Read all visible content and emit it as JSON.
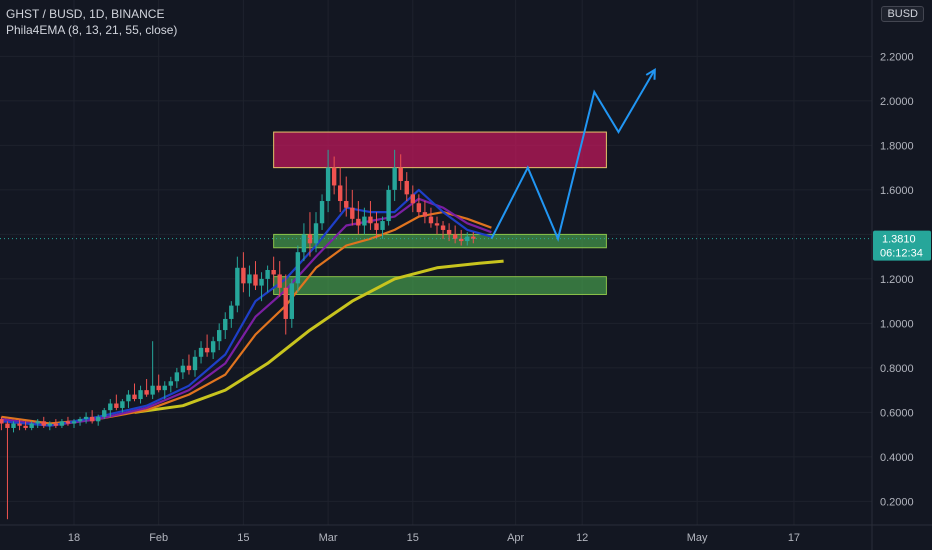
{
  "header": {
    "symbol_line": "GHST / BUSD, 1D, BINANCE",
    "indicator_line": "Phila4EMA (8, 13, 21, 55, close)",
    "currency_button": "BUSD",
    "top_axis_partial": "2"
  },
  "colors": {
    "background": "#131722",
    "grid": "#1e222d",
    "up": "#26a69a",
    "down": "#ef5350",
    "ema8": "#1e3fc8",
    "ema13": "#7b1fa2",
    "ema21": "#e0741f",
    "ema55": "#c8c41e",
    "resistance_zone": "#c2185b",
    "support_zone": "#4caf50",
    "projection": "#2196f3",
    "price_label": "#26a69a"
  },
  "chart_data": {
    "type": "candlestick",
    "ylim": [
      0.1,
      2.4
    ],
    "y_ticks": [
      "2.2000",
      "2.0000",
      "1.8000",
      "1.6000",
      "1.4000",
      "1.2000",
      "1.0000",
      "0.8000",
      "0.6000",
      "0.4000",
      "0.2000"
    ],
    "x_ticks": [
      "18",
      "Feb",
      "15",
      "Mar",
      "15",
      "Apr",
      "12",
      "May",
      "17"
    ],
    "current_price": "1.3810",
    "countdown": "06:12:34",
    "zones": [
      {
        "type": "resistance",
        "low": 1.7,
        "high": 1.86,
        "from": "2022-02-20",
        "to": "2022-04-16"
      },
      {
        "type": "support",
        "low": 1.34,
        "high": 1.4,
        "from": "2022-02-20",
        "to": "2022-04-16"
      },
      {
        "type": "support",
        "low": 1.13,
        "high": 1.21,
        "from": "2022-02-20",
        "to": "2022-04-16"
      }
    ],
    "projection_path": [
      [
        "2022-03-28",
        1.38
      ],
      [
        "2022-04-03",
        1.7
      ],
      [
        "2022-04-08",
        1.38
      ],
      [
        "2022-04-14",
        2.04
      ],
      [
        "2022-04-18",
        1.86
      ],
      [
        "2022-04-24",
        2.14
      ]
    ],
    "series": [
      {
        "name": "EMA 55",
        "color_key": "ema55",
        "x": [
          "2022-01-28",
          "2022-02-05",
          "2022-02-12",
          "2022-02-19",
          "2022-02-26",
          "2022-03-05",
          "2022-03-12",
          "2022-03-19",
          "2022-03-26",
          "2022-03-30"
        ],
        "y": [
          0.6,
          0.63,
          0.7,
          0.82,
          0.97,
          1.1,
          1.2,
          1.25,
          1.27,
          1.28
        ]
      },
      {
        "name": "EMA 21",
        "color_key": "ema21",
        "x": [
          "2022-01-06",
          "2022-01-14",
          "2022-01-22",
          "2022-01-30",
          "2022-02-06",
          "2022-02-12",
          "2022-02-17",
          "2022-02-22",
          "2022-02-27",
          "2022-03-04",
          "2022-03-08",
          "2022-03-12",
          "2022-03-16",
          "2022-03-20",
          "2022-03-24",
          "2022-03-28"
        ],
        "y": [
          0.58,
          0.55,
          0.57,
          0.61,
          0.68,
          0.77,
          0.95,
          1.08,
          1.25,
          1.35,
          1.38,
          1.42,
          1.48,
          1.5,
          1.47,
          1.43
        ]
      },
      {
        "name": "EMA 13",
        "color_key": "ema13",
        "x": [
          "2022-01-06",
          "2022-01-14",
          "2022-01-22",
          "2022-01-30",
          "2022-02-06",
          "2022-02-12",
          "2022-02-17",
          "2022-02-22",
          "2022-02-27",
          "2022-03-04",
          "2022-03-08",
          "2022-03-12",
          "2022-03-16",
          "2022-03-20",
          "2022-03-24",
          "2022-03-28"
        ],
        "y": [
          0.57,
          0.54,
          0.57,
          0.62,
          0.7,
          0.82,
          1.03,
          1.15,
          1.3,
          1.44,
          1.46,
          1.48,
          1.56,
          1.52,
          1.45,
          1.41
        ]
      },
      {
        "name": "EMA 8",
        "color_key": "ema8",
        "x": [
          "2022-01-06",
          "2022-01-14",
          "2022-01-22",
          "2022-01-30",
          "2022-02-06",
          "2022-02-12",
          "2022-02-17",
          "2022-02-22",
          "2022-02-27",
          "2022-03-04",
          "2022-03-08",
          "2022-03-12",
          "2022-03-16",
          "2022-03-20",
          "2022-03-24",
          "2022-03-28"
        ],
        "y": [
          0.56,
          0.54,
          0.58,
          0.63,
          0.72,
          0.86,
          1.1,
          1.2,
          1.35,
          1.52,
          1.5,
          1.5,
          1.6,
          1.5,
          1.42,
          1.39
        ]
      }
    ],
    "candles": [
      [
        "2022-01-06",
        0.57,
        0.58,
        0.52,
        0.55
      ],
      [
        "2022-01-07",
        0.55,
        0.56,
        0.12,
        0.53
      ],
      [
        "2022-01-08",
        0.53,
        0.56,
        0.51,
        0.55
      ],
      [
        "2022-01-09",
        0.55,
        0.57,
        0.52,
        0.54
      ],
      [
        "2022-01-10",
        0.54,
        0.56,
        0.52,
        0.53
      ],
      [
        "2022-01-11",
        0.53,
        0.56,
        0.52,
        0.55
      ],
      [
        "2022-01-12",
        0.55,
        0.57,
        0.53,
        0.56
      ],
      [
        "2022-01-13",
        0.56,
        0.58,
        0.53,
        0.54
      ],
      [
        "2022-01-14",
        0.54,
        0.56,
        0.52,
        0.55
      ],
      [
        "2022-01-15",
        0.55,
        0.57,
        0.53,
        0.54
      ],
      [
        "2022-01-16",
        0.54,
        0.57,
        0.53,
        0.56
      ],
      [
        "2022-01-17",
        0.56,
        0.58,
        0.54,
        0.55
      ],
      [
        "2022-01-18",
        0.55,
        0.57,
        0.53,
        0.56
      ],
      [
        "2022-01-19",
        0.56,
        0.58,
        0.54,
        0.57
      ],
      [
        "2022-01-20",
        0.57,
        0.6,
        0.55,
        0.58
      ],
      [
        "2022-01-21",
        0.58,
        0.61,
        0.55,
        0.56
      ],
      [
        "2022-01-22",
        0.56,
        0.59,
        0.54,
        0.58
      ],
      [
        "2022-01-23",
        0.58,
        0.62,
        0.57,
        0.61
      ],
      [
        "2022-01-24",
        0.61,
        0.66,
        0.58,
        0.64
      ],
      [
        "2022-01-25",
        0.64,
        0.68,
        0.61,
        0.62
      ],
      [
        "2022-01-26",
        0.62,
        0.66,
        0.6,
        0.65
      ],
      [
        "2022-01-27",
        0.65,
        0.7,
        0.62,
        0.68
      ],
      [
        "2022-01-28",
        0.68,
        0.73,
        0.65,
        0.66
      ],
      [
        "2022-01-29",
        0.66,
        0.72,
        0.64,
        0.7
      ],
      [
        "2022-01-30",
        0.7,
        0.75,
        0.67,
        0.68
      ],
      [
        "2022-01-31",
        0.68,
        0.92,
        0.66,
        0.72
      ],
      [
        "2022-02-01",
        0.72,
        0.77,
        0.69,
        0.7
      ],
      [
        "2022-02-02",
        0.7,
        0.74,
        0.66,
        0.72
      ],
      [
        "2022-02-03",
        0.72,
        0.76,
        0.69,
        0.74
      ],
      [
        "2022-02-04",
        0.74,
        0.8,
        0.71,
        0.78
      ],
      [
        "2022-02-05",
        0.78,
        0.84,
        0.75,
        0.81
      ],
      [
        "2022-02-06",
        0.81,
        0.86,
        0.77,
        0.79
      ],
      [
        "2022-02-07",
        0.79,
        0.88,
        0.76,
        0.85
      ],
      [
        "2022-02-08",
        0.85,
        0.92,
        0.82,
        0.89
      ],
      [
        "2022-02-09",
        0.89,
        0.95,
        0.85,
        0.87
      ],
      [
        "2022-02-10",
        0.87,
        0.94,
        0.84,
        0.92
      ],
      [
        "2022-02-11",
        0.92,
        1.0,
        0.88,
        0.97
      ],
      [
        "2022-02-12",
        0.97,
        1.05,
        0.93,
        1.02
      ],
      [
        "2022-02-13",
        1.02,
        1.1,
        0.98,
        1.08
      ],
      [
        "2022-02-14",
        1.08,
        1.3,
        1.05,
        1.25
      ],
      [
        "2022-02-15",
        1.25,
        1.32,
        1.14,
        1.18
      ],
      [
        "2022-02-16",
        1.18,
        1.26,
        1.12,
        1.22
      ],
      [
        "2022-02-17",
        1.22,
        1.28,
        1.15,
        1.17
      ],
      [
        "2022-02-18",
        1.17,
        1.23,
        1.1,
        1.2
      ],
      [
        "2022-02-19",
        1.2,
        1.26,
        1.14,
        1.24
      ],
      [
        "2022-02-20",
        1.24,
        1.3,
        1.18,
        1.22
      ],
      [
        "2022-02-21",
        1.22,
        1.28,
        1.12,
        1.16
      ],
      [
        "2022-02-22",
        1.16,
        1.22,
        0.95,
        1.02
      ],
      [
        "2022-02-23",
        1.02,
        1.2,
        0.98,
        1.18
      ],
      [
        "2022-02-24",
        1.18,
        1.35,
        1.14,
        1.32
      ],
      [
        "2022-02-25",
        1.32,
        1.45,
        1.28,
        1.4
      ],
      [
        "2022-02-26",
        1.4,
        1.5,
        1.3,
        1.36
      ],
      [
        "2022-02-27",
        1.36,
        1.5,
        1.32,
        1.45
      ],
      [
        "2022-02-28",
        1.45,
        1.58,
        1.42,
        1.55
      ],
      [
        "2022-03-01",
        1.55,
        1.78,
        1.5,
        1.7
      ],
      [
        "2022-03-02",
        1.7,
        1.75,
        1.58,
        1.62
      ],
      [
        "2022-03-03",
        1.62,
        1.7,
        1.5,
        1.55
      ],
      [
        "2022-03-04",
        1.55,
        1.66,
        1.48,
        1.52
      ],
      [
        "2022-03-05",
        1.52,
        1.6,
        1.44,
        1.47
      ],
      [
        "2022-03-06",
        1.47,
        1.55,
        1.4,
        1.44
      ],
      [
        "2022-03-07",
        1.44,
        1.52,
        1.4,
        1.48
      ],
      [
        "2022-03-08",
        1.48,
        1.55,
        1.42,
        1.45
      ],
      [
        "2022-03-09",
        1.45,
        1.5,
        1.38,
        1.42
      ],
      [
        "2022-03-10",
        1.42,
        1.48,
        1.38,
        1.46
      ],
      [
        "2022-03-11",
        1.46,
        1.62,
        1.44,
        1.6
      ],
      [
        "2022-03-12",
        1.6,
        1.78,
        1.55,
        1.7
      ],
      [
        "2022-03-13",
        1.7,
        1.76,
        1.6,
        1.64
      ],
      [
        "2022-03-14",
        1.64,
        1.68,
        1.55,
        1.58
      ],
      [
        "2022-03-15",
        1.58,
        1.62,
        1.5,
        1.54
      ],
      [
        "2022-03-16",
        1.54,
        1.58,
        1.48,
        1.5
      ],
      [
        "2022-03-17",
        1.5,
        1.55,
        1.45,
        1.48
      ],
      [
        "2022-03-18",
        1.48,
        1.52,
        1.43,
        1.45
      ],
      [
        "2022-03-19",
        1.45,
        1.48,
        1.4,
        1.44
      ],
      [
        "2022-03-20",
        1.44,
        1.46,
        1.38,
        1.42
      ],
      [
        "2022-03-21",
        1.42,
        1.45,
        1.37,
        1.4
      ],
      [
        "2022-03-22",
        1.4,
        1.44,
        1.36,
        1.38
      ],
      [
        "2022-03-23",
        1.38,
        1.42,
        1.35,
        1.37
      ],
      [
        "2022-03-24",
        1.37,
        1.41,
        1.35,
        1.39
      ],
      [
        "2022-03-25",
        1.39,
        1.41,
        1.36,
        1.38
      ]
    ]
  }
}
